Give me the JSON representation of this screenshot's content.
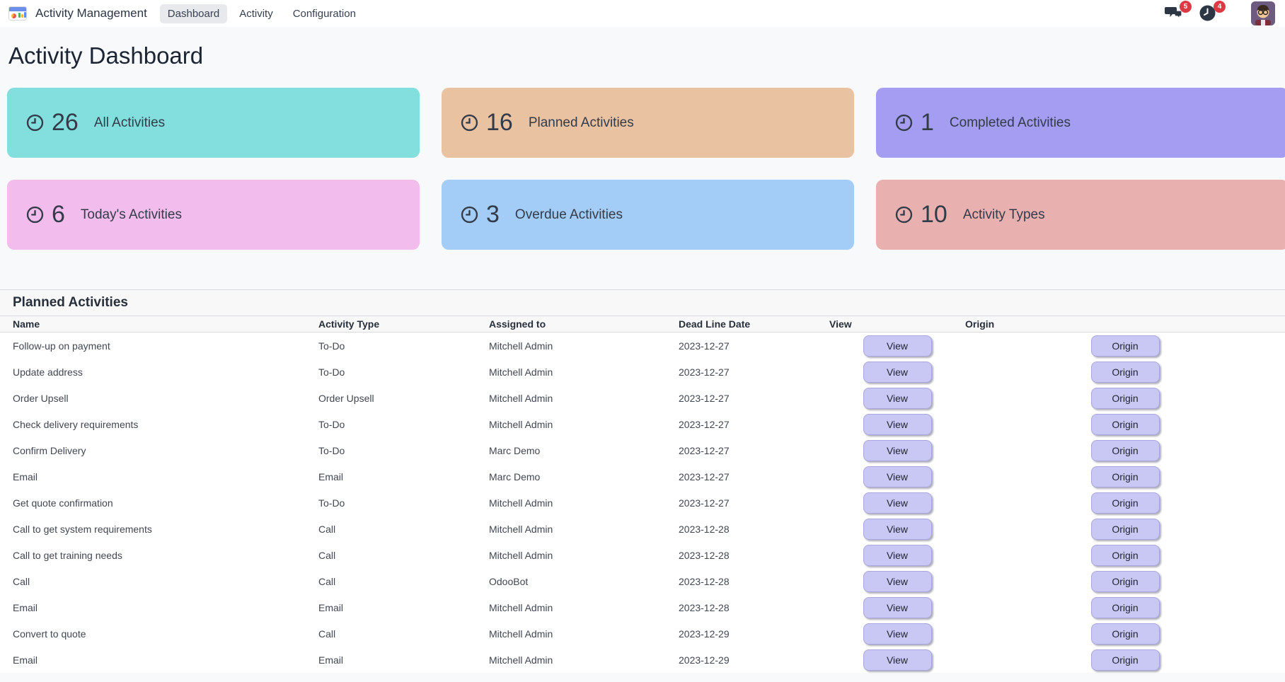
{
  "navbar": {
    "app_name": "Activity Management",
    "menu_items": [
      {
        "label": "Dashboard",
        "active": true
      },
      {
        "label": "Activity",
        "active": false
      },
      {
        "label": "Configuration",
        "active": false
      }
    ],
    "systray": {
      "messages_badge": "5",
      "activities_badge": "4"
    }
  },
  "page": {
    "title": "Activity Dashboard"
  },
  "cards": [
    {
      "count": "26",
      "label": "All Activities",
      "color": "#82dfdd"
    },
    {
      "count": "16",
      "label": "Planned Activities",
      "color": "#e9c2a2"
    },
    {
      "count": "1",
      "label": "Completed Activities",
      "color": "#a49df2"
    },
    {
      "count": "6",
      "label": "Today's Activities",
      "color": "#f2bdec"
    },
    {
      "count": "3",
      "label": "Overdue Activities",
      "color": "#a3cdf6"
    },
    {
      "count": "10",
      "label": "Activity Types",
      "color": "#e8b1b0"
    }
  ],
  "table": {
    "heading": "Planned Activities",
    "columns": [
      "Name",
      "Activity Type",
      "Assigned to",
      "Dead Line Date",
      "View",
      "Origin"
    ],
    "view_button_label": "View",
    "origin_button_label": "Origin",
    "rows": [
      {
        "name": "Follow-up on payment",
        "type": "To-Do",
        "assigned": "Mitchell Admin",
        "deadline": "2023-12-27"
      },
      {
        "name": "Update address",
        "type": "To-Do",
        "assigned": "Mitchell Admin",
        "deadline": "2023-12-27"
      },
      {
        "name": "Order Upsell",
        "type": "Order Upsell",
        "assigned": "Mitchell Admin",
        "deadline": "2023-12-27"
      },
      {
        "name": "Check delivery requirements",
        "type": "To-Do",
        "assigned": "Mitchell Admin",
        "deadline": "2023-12-27"
      },
      {
        "name": "Confirm Delivery",
        "type": "To-Do",
        "assigned": "Marc Demo",
        "deadline": "2023-12-27"
      },
      {
        "name": "Email",
        "type": "Email",
        "assigned": "Marc Demo",
        "deadline": "2023-12-27"
      },
      {
        "name": "Get quote confirmation",
        "type": "To-Do",
        "assigned": "Mitchell Admin",
        "deadline": "2023-12-27"
      },
      {
        "name": "Call to get system requirements",
        "type": "Call",
        "assigned": "Mitchell Admin",
        "deadline": "2023-12-28"
      },
      {
        "name": "Call to get training needs",
        "type": "Call",
        "assigned": "Mitchell Admin",
        "deadline": "2023-12-28"
      },
      {
        "name": "Call",
        "type": "Call",
        "assigned": "OdooBot",
        "deadline": "2023-12-28"
      },
      {
        "name": "Email",
        "type": "Email",
        "assigned": "Mitchell Admin",
        "deadline": "2023-12-28"
      },
      {
        "name": "Convert to quote",
        "type": "Call",
        "assigned": "Mitchell Admin",
        "deadline": "2023-12-29"
      },
      {
        "name": "Email",
        "type": "Email",
        "assigned": "Mitchell Admin",
        "deadline": "2023-12-29"
      }
    ]
  }
}
